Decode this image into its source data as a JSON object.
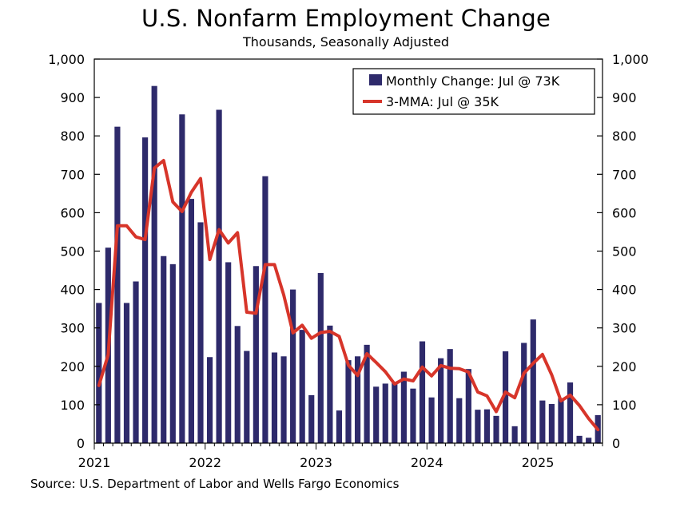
{
  "title": "U.S. Nonfarm Employment Change",
  "subtitle": "Thousands, Seasonally Adjusted",
  "source": "Source: U.S. Department of Labor and Wells Fargo Economics",
  "colors": {
    "bars": "#2e2a6b",
    "line": "#d7352a",
    "axis": "#000000"
  },
  "legend": {
    "placement": "top-right",
    "bars_label": "Monthly Change: Jul @ 73K",
    "line_label": "3-MMA: Jul @ 35K"
  },
  "chart_data": {
    "type": "bar",
    "ylim": [
      0,
      1000
    ],
    "y_ticks": [
      "0",
      "100",
      "200",
      "300",
      "400",
      "500",
      "600",
      "700",
      "800",
      "900",
      "1,000"
    ],
    "x_ticks": [
      "2021",
      "2022",
      "2023",
      "2024",
      "2025"
    ],
    "grid": false,
    "series": [
      {
        "name": "Monthly Change: Jul @ 73K",
        "kind": "bar",
        "start": "2021-01",
        "values": [
          365,
          509,
          824,
          365,
          421,
          796,
          930,
          487,
          466,
          856,
          636,
          575,
          224,
          868,
          471,
          305,
          240,
          461,
          695,
          236,
          226,
          400,
          295,
          125,
          443,
          306,
          85,
          216,
          226,
          256,
          147,
          155,
          159,
          186,
          142,
          265,
          119,
          221,
          245,
          117,
          193,
          87,
          88,
          71,
          239,
          44,
          261,
          322,
          111,
          102,
          117,
          158,
          19,
          14,
          73
        ]
      },
      {
        "name": "3-MMA: Jul @ 35K",
        "kind": "line",
        "start": "2021-01",
        "values": [
          150,
          230,
          566,
          566,
          537,
          530,
          716,
          736,
          628,
          603,
          653,
          689,
          478,
          556,
          521,
          548,
          341,
          338,
          465,
          465,
          386,
          287,
          307,
          273,
          288,
          291,
          278,
          203,
          176,
          233,
          210,
          186,
          154,
          167,
          162,
          198,
          175,
          202,
          195,
          194,
          185,
          133,
          123,
          82,
          133,
          118,
          182,
          208,
          231,
          178,
          110,
          125,
          98,
          64,
          35
        ]
      }
    ]
  }
}
